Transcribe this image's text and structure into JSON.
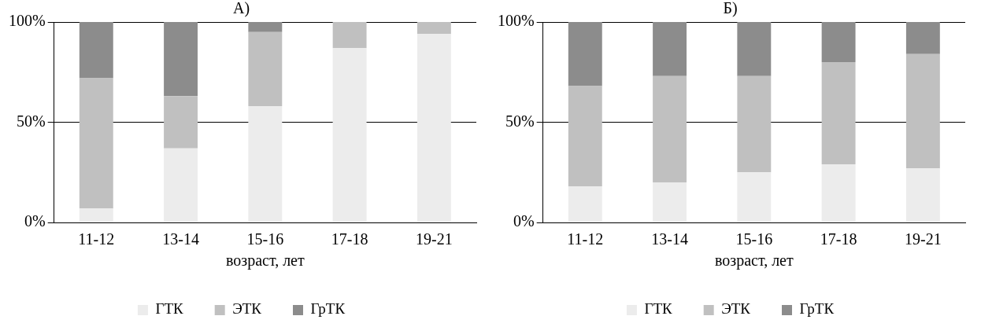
{
  "chart_data": [
    {
      "type": "bar",
      "title": "А)",
      "xlabel": "возраст, лет",
      "categories": [
        "11-12",
        "13-14",
        "15-16",
        "17-18",
        "19-21"
      ],
      "stacked": true,
      "ylim": [
        0,
        100
      ],
      "yticks": [
        {
          "value": 0,
          "label": "0%"
        },
        {
          "value": 50,
          "label": "50%"
        },
        {
          "value": 100,
          "label": "100%"
        }
      ],
      "grid": "y",
      "legend": "bottom",
      "series": [
        {
          "name": "ГТК",
          "color": "#ececec",
          "values": [
            7,
            37,
            58,
            87,
            94
          ]
        },
        {
          "name": "ЭТК",
          "color": "#c0c0c0",
          "values": [
            65,
            26,
            37,
            13,
            6
          ]
        },
        {
          "name": "ГрТК",
          "color": "#8c8c8c",
          "values": [
            28,
            37,
            5,
            0,
            0
          ]
        }
      ]
    },
    {
      "type": "bar",
      "title": "Б)",
      "xlabel": "возраст, лет",
      "categories": [
        "11-12",
        "13-14",
        "15-16",
        "17-18",
        "19-21"
      ],
      "stacked": true,
      "ylim": [
        0,
        100
      ],
      "yticks": [
        {
          "value": 0,
          "label": "0%"
        },
        {
          "value": 50,
          "label": "50%"
        },
        {
          "value": 100,
          "label": "100%"
        }
      ],
      "grid": "y",
      "legend": "bottom",
      "series": [
        {
          "name": "ГТК",
          "color": "#ececec",
          "values": [
            18,
            20,
            25,
            29,
            27
          ]
        },
        {
          "name": "ЭТК",
          "color": "#c0c0c0",
          "values": [
            50,
            53,
            48,
            51,
            57
          ]
        },
        {
          "name": "ГрТК",
          "color": "#8c8c8c",
          "values": [
            32,
            27,
            27,
            20,
            16
          ]
        }
      ]
    }
  ]
}
